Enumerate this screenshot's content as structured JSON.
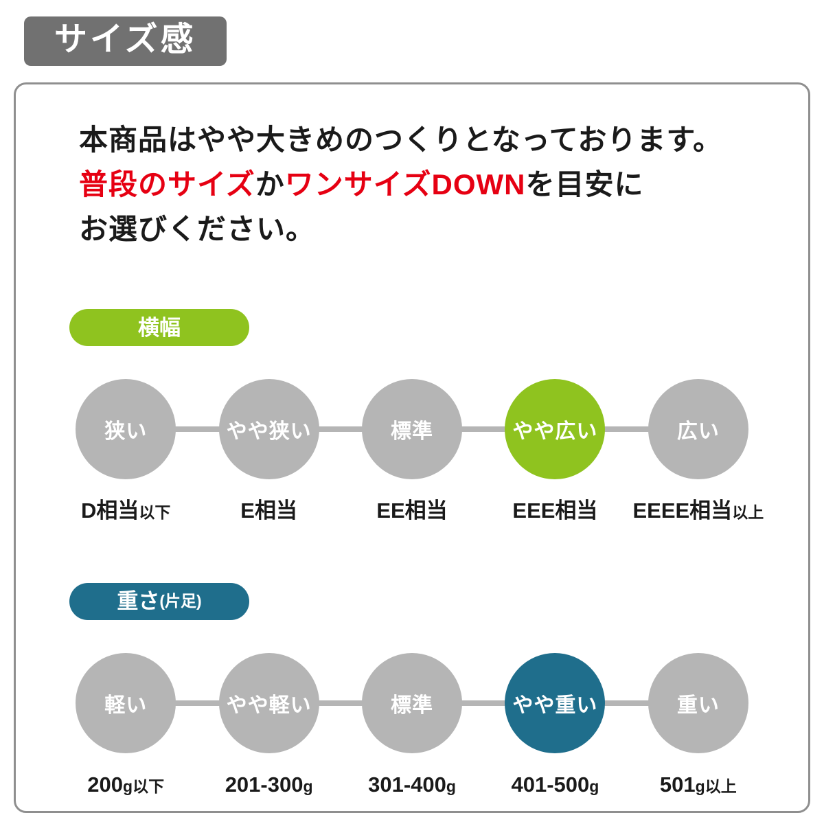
{
  "page_title": "サイズ感",
  "description": {
    "line1": "本商品はやや大きめのつくりとなっております。",
    "red1": "普段のサイズ",
    "black1": "か",
    "red2": "ワンサイズDOWN",
    "black2": "を目安に",
    "line3": "お選びください。"
  },
  "colors": {
    "title_badge_gray": "#717171",
    "green_accent": "#8fc31f",
    "teal_accent": "#1f6e8c",
    "circle_gray": "#b5b5b5",
    "highlight_red": "#e60012"
  },
  "width_section": {
    "badge_label": "横幅",
    "items": [
      {
        "circle": "狭い",
        "active": false,
        "label": "D相当",
        "label_small": "以下"
      },
      {
        "circle": "やや狭い",
        "active": false,
        "label": "E相当",
        "label_small": ""
      },
      {
        "circle": "標準",
        "active": false,
        "label": "EE相当",
        "label_small": ""
      },
      {
        "circle": "やや広い",
        "active": true,
        "label": "EEE相当",
        "label_small": ""
      },
      {
        "circle": "広い",
        "active": false,
        "label": "EEEE相当",
        "label_small": "以上"
      }
    ]
  },
  "weight_section": {
    "badge_label": "重さ",
    "badge_sub": "(片足)",
    "items": [
      {
        "circle": "軽い",
        "active": false,
        "label": "200",
        "label_small": "g以下"
      },
      {
        "circle": "やや軽い",
        "active": false,
        "label": "201-300",
        "label_small": "g"
      },
      {
        "circle": "標準",
        "active": false,
        "label": "301-400",
        "label_small": "g"
      },
      {
        "circle": "やや重い",
        "active": true,
        "label": "401-500",
        "label_small": "g"
      },
      {
        "circle": "重い",
        "active": false,
        "label": "501",
        "label_small": "g以上"
      }
    ]
  }
}
